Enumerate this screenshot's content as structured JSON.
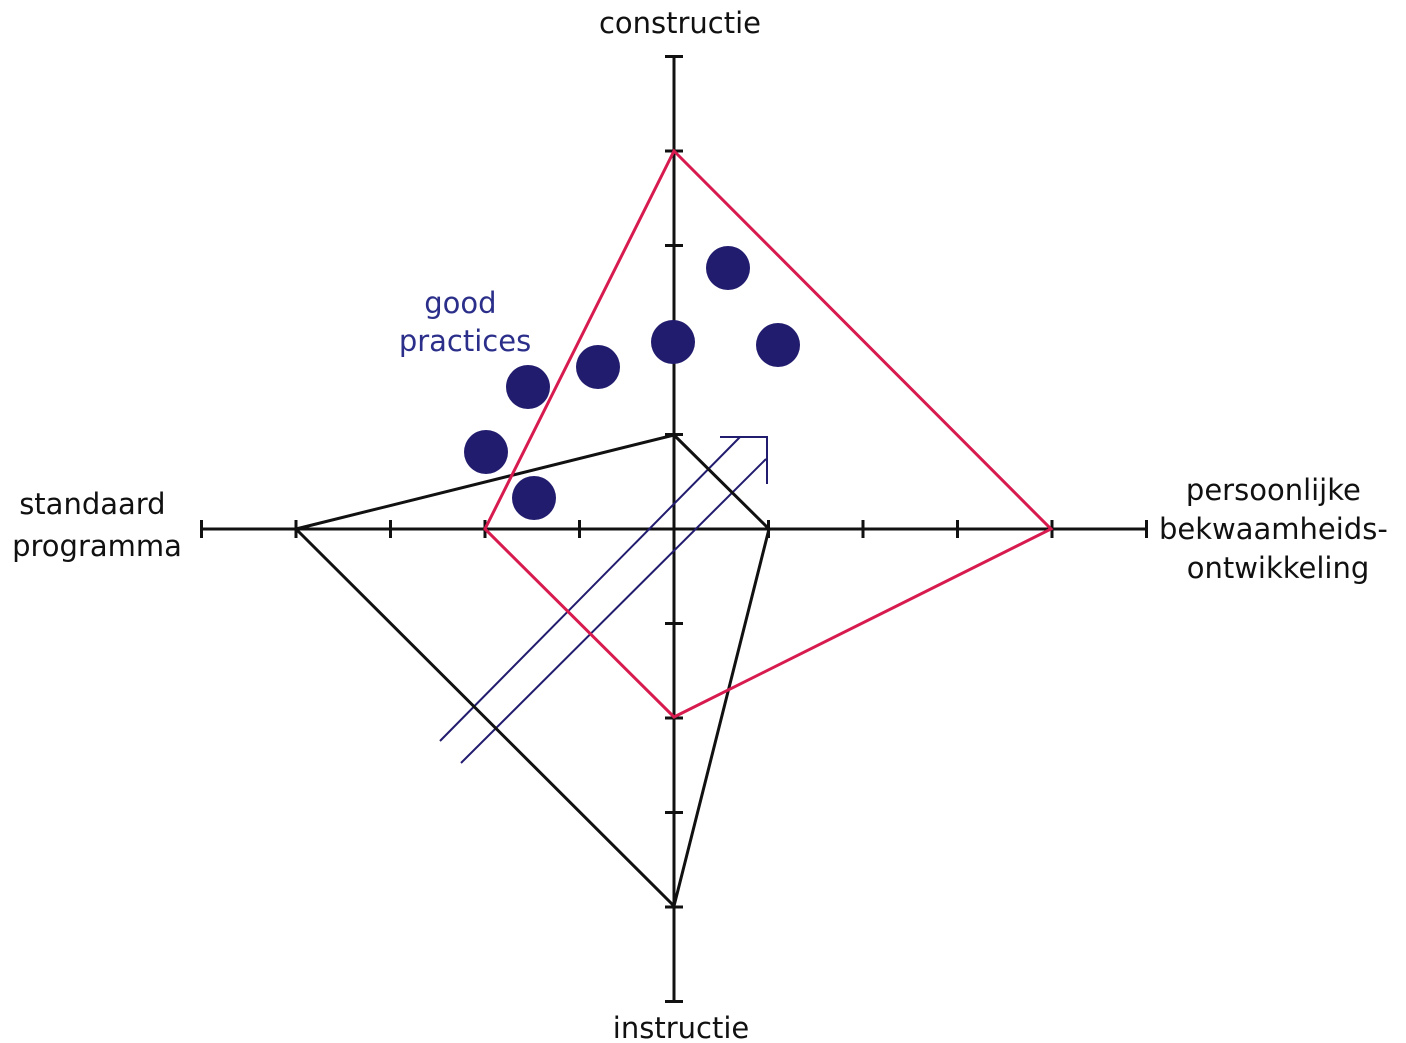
{
  "diagram": {
    "axes": {
      "top_label": "constructie",
      "bottom_label": "instructie",
      "left_label_lines": [
        "standaard",
        "programma"
      ],
      "right_label_lines": [
        "persoonlijke",
        "bekwaamheids-",
        "ontwikkeling"
      ]
    },
    "good_practices_label_lines": [
      "good",
      "practices"
    ],
    "colors": {
      "axis": "#111111",
      "pink_polygon": "#d81b4f",
      "black_polygon": "#111111",
      "dots": "#221c6e",
      "arrow": "#221c6e",
      "good_practices_text": "#2b2f8a"
    }
  }
}
